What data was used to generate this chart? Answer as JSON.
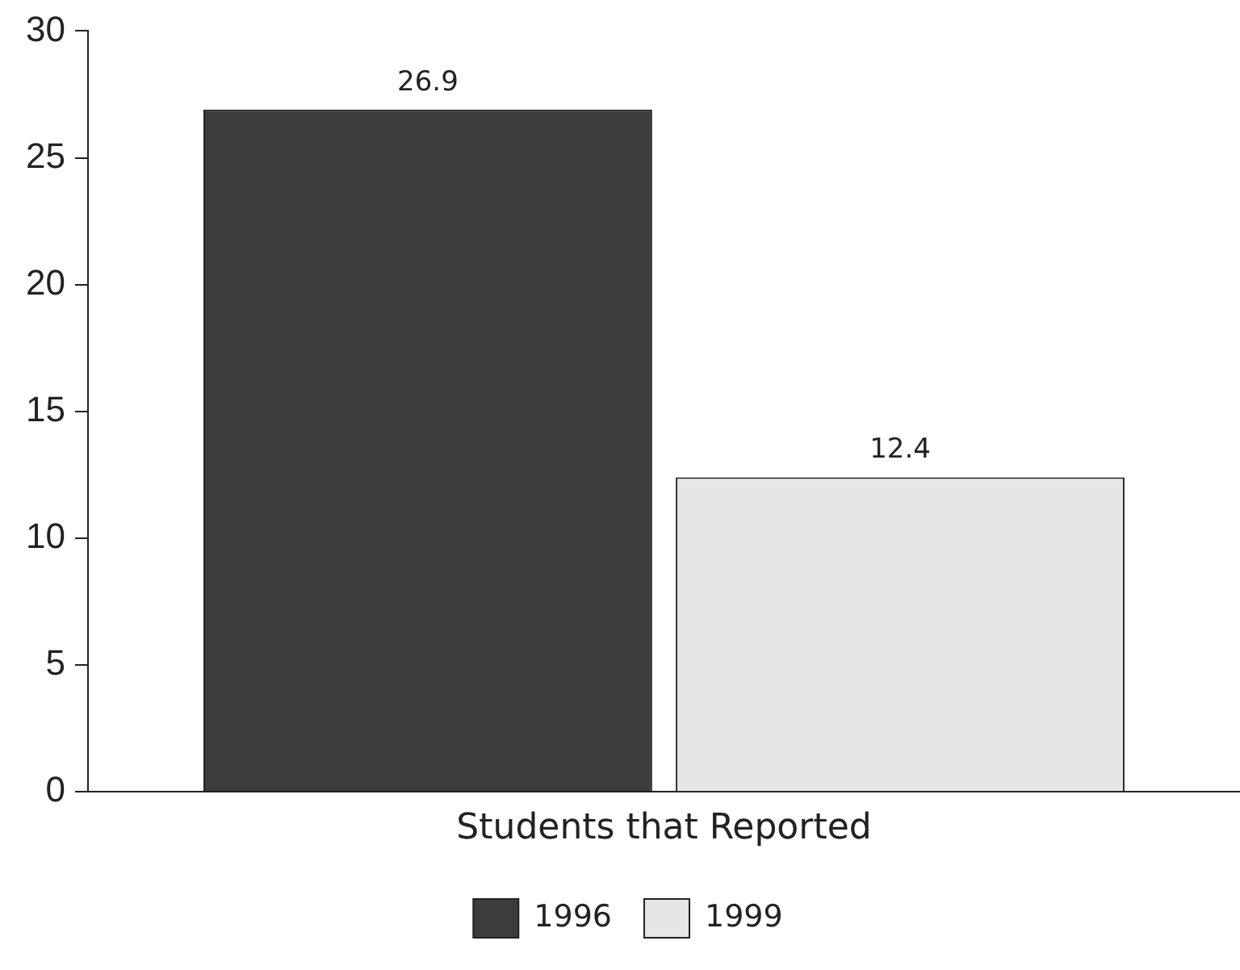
{
  "chart_data": {
    "type": "bar",
    "categories": [
      "Students that Reported"
    ],
    "series": [
      {
        "name": "1996",
        "color": "#3c3c3c",
        "values": [
          26.9
        ]
      },
      {
        "name": "1999",
        "color": "#e6e6e6",
        "values": [
          12.4
        ]
      }
    ],
    "ylim": [
      0,
      30
    ],
    "yticks": [
      0,
      5,
      10,
      15,
      20,
      25,
      30
    ],
    "grid": false,
    "legend": "bottom",
    "data_labels": true
  }
}
